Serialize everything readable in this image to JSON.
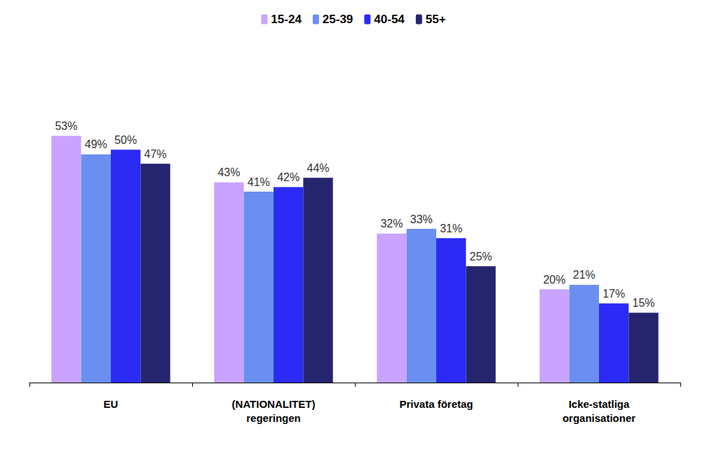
{
  "chart_data": {
    "type": "bar",
    "categories": [
      "EU",
      "(NATIONALITET)\nregeringen",
      "Privata företag",
      "Icke-statliga\norganisationer"
    ],
    "series": [
      {
        "name": "15-24",
        "color": "#c9a3ff",
        "values": [
          53,
          43,
          32,
          20
        ],
        "value_labels": [
          "53%",
          "43%",
          "32%",
          "20%"
        ]
      },
      {
        "name": "25-39",
        "color": "#6b8ff0",
        "values": [
          49,
          41,
          33,
          21
        ],
        "value_labels": [
          "49%",
          "41%",
          "33%",
          "21%"
        ]
      },
      {
        "name": "40-54",
        "color": "#2b2bf5",
        "values": [
          50,
          42,
          31,
          17
        ],
        "value_labels": [
          "50%",
          "42%",
          "31%",
          "17%"
        ]
      },
      {
        "name": "55+",
        "color": "#25256e",
        "values": [
          47,
          44,
          25,
          15
        ],
        "value_labels": [
          "47%",
          "44%",
          "25%",
          "15%"
        ]
      }
    ],
    "ylim": [
      0,
      60
    ],
    "grid": false,
    "legend": "top",
    "data_labels": true,
    "tick_labels": "x"
  }
}
